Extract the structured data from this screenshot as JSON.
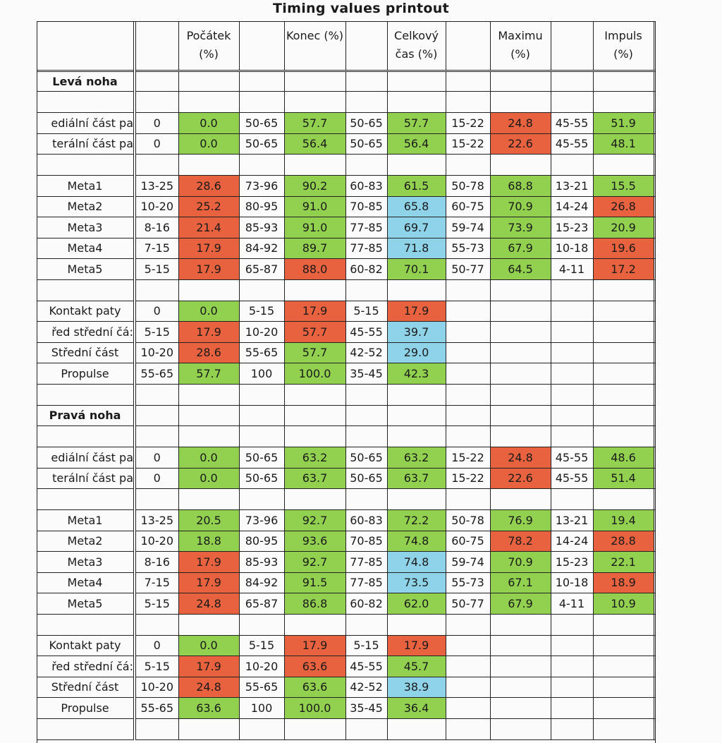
{
  "title": "Timing values printout",
  "colors": {
    "green": "#92d050",
    "red": "#e8623f",
    "blue": "#8fd3e8"
  },
  "headers": [
    "Počátek (%)",
    "Konec (%)",
    "Celkový čas (%)",
    "Maximu (%)",
    "Impuls (%)"
  ],
  "sections": [
    {
      "name": "Levá noha",
      "groups": [
        [
          {
            "label": "ediální část pa",
            "cells": [
              [
                "0",
                "0.0",
                "g"
              ],
              [
                "50-65",
                "57.7",
                "g"
              ],
              [
                "50-65",
                "57.7",
                "g"
              ],
              [
                "15-22",
                "24.8",
                "r"
              ],
              [
                "45-55",
                "51.9",
                "g"
              ]
            ]
          },
          {
            "label": "terální část pa",
            "cells": [
              [
                "0",
                "0.0",
                "g"
              ],
              [
                "50-65",
                "56.4",
                "g"
              ],
              [
                "50-65",
                "56.4",
                "g"
              ],
              [
                "15-22",
                "22.6",
                "r"
              ],
              [
                "45-55",
                "48.1",
                "g"
              ]
            ]
          }
        ],
        [
          {
            "label": "Meta1",
            "cells": [
              [
                "13-25",
                "28.6",
                "r"
              ],
              [
                "73-96",
                "90.2",
                "g"
              ],
              [
                "60-83",
                "61.5",
                "g"
              ],
              [
                "50-78",
                "68.8",
                "g"
              ],
              [
                "13-21",
                "15.5",
                "g"
              ]
            ]
          },
          {
            "label": "Meta2",
            "cells": [
              [
                "10-20",
                "25.2",
                "r"
              ],
              [
                "80-95",
                "91.0",
                "g"
              ],
              [
                "70-85",
                "65.8",
                "b"
              ],
              [
                "60-75",
                "70.9",
                "g"
              ],
              [
                "14-24",
                "26.8",
                "r"
              ]
            ]
          },
          {
            "label": "Meta3",
            "cells": [
              [
                "8-16",
                "21.4",
                "r"
              ],
              [
                "85-93",
                "91.0",
                "g"
              ],
              [
                "77-85",
                "69.7",
                "b"
              ],
              [
                "59-74",
                "73.9",
                "g"
              ],
              [
                "15-23",
                "20.9",
                "g"
              ]
            ]
          },
          {
            "label": "Meta4",
            "cells": [
              [
                "7-15",
                "17.9",
                "r"
              ],
              [
                "84-92",
                "89.7",
                "g"
              ],
              [
                "77-85",
                "71.8",
                "b"
              ],
              [
                "55-73",
                "67.9",
                "g"
              ],
              [
                "10-18",
                "19.6",
                "r"
              ]
            ]
          },
          {
            "label": "Meta5",
            "cells": [
              [
                "5-15",
                "17.9",
                "r"
              ],
              [
                "65-87",
                "88.0",
                "r"
              ],
              [
                "60-82",
                "70.1",
                "g"
              ],
              [
                "50-77",
                "64.5",
                "g"
              ],
              [
                "4-11",
                "17.2",
                "r"
              ]
            ]
          }
        ],
        [
          {
            "label": "Kontakt paty",
            "cells": [
              [
                "0",
                "0.0",
                "g"
              ],
              [
                "5-15",
                "17.9",
                "r"
              ],
              [
                "5-15",
                "17.9",
                "r"
              ],
              [
                "",
                "",
                " "
              ],
              [
                "",
                "",
                " "
              ]
            ]
          },
          {
            "label": "řed střední čá:",
            "cells": [
              [
                "5-15",
                "17.9",
                "r"
              ],
              [
                "10-20",
                "57.7",
                "r"
              ],
              [
                "45-55",
                "39.7",
                "b"
              ],
              [
                "",
                "",
                " "
              ],
              [
                "",
                "",
                " "
              ]
            ]
          },
          {
            "label": "Střední část",
            "cells": [
              [
                "10-20",
                "28.6",
                "r"
              ],
              [
                "55-65",
                "57.7",
                "g"
              ],
              [
                "42-52",
                "29.0",
                "b"
              ],
              [
                "",
                "",
                " "
              ],
              [
                "",
                "",
                " "
              ]
            ]
          },
          {
            "label": "Propulse",
            "cells": [
              [
                "55-65",
                "57.7",
                "g"
              ],
              [
                "100",
                "100.0",
                "g"
              ],
              [
                "35-45",
                "42.3",
                "g"
              ],
              [
                "",
                "",
                " "
              ],
              [
                "",
                "",
                " "
              ]
            ]
          }
        ]
      ]
    },
    {
      "name": "Pravá noha",
      "groups": [
        [
          {
            "label": "ediální část pa",
            "cells": [
              [
                "0",
                "0.0",
                "g"
              ],
              [
                "50-65",
                "63.2",
                "g"
              ],
              [
                "50-65",
                "63.2",
                "g"
              ],
              [
                "15-22",
                "24.8",
                "r"
              ],
              [
                "45-55",
                "48.6",
                "g"
              ]
            ]
          },
          {
            "label": "terální část pa",
            "cells": [
              [
                "0",
                "0.0",
                "g"
              ],
              [
                "50-65",
                "63.7",
                "g"
              ],
              [
                "50-65",
                "63.7",
                "g"
              ],
              [
                "15-22",
                "22.6",
                "r"
              ],
              [
                "45-55",
                "51.4",
                "g"
              ]
            ]
          }
        ],
        [
          {
            "label": "Meta1",
            "cells": [
              [
                "13-25",
                "20.5",
                "g"
              ],
              [
                "73-96",
                "92.7",
                "g"
              ],
              [
                "60-83",
                "72.2",
                "g"
              ],
              [
                "50-78",
                "76.9",
                "g"
              ],
              [
                "13-21",
                "19.4",
                "g"
              ]
            ]
          },
          {
            "label": "Meta2",
            "cells": [
              [
                "10-20",
                "18.8",
                "g"
              ],
              [
                "80-95",
                "93.6",
                "g"
              ],
              [
                "70-85",
                "74.8",
                "g"
              ],
              [
                "60-75",
                "78.2",
                "r"
              ],
              [
                "14-24",
                "28.8",
                "r"
              ]
            ]
          },
          {
            "label": "Meta3",
            "cells": [
              [
                "8-16",
                "17.9",
                "r"
              ],
              [
                "85-93",
                "92.7",
                "g"
              ],
              [
                "77-85",
                "74.8",
                "b"
              ],
              [
                "59-74",
                "70.9",
                "g"
              ],
              [
                "15-23",
                "22.1",
                "g"
              ]
            ]
          },
          {
            "label": "Meta4",
            "cells": [
              [
                "7-15",
                "17.9",
                "r"
              ],
              [
                "84-92",
                "91.5",
                "g"
              ],
              [
                "77-85",
                "73.5",
                "b"
              ],
              [
                "55-73",
                "67.1",
                "g"
              ],
              [
                "10-18",
                "18.9",
                "r"
              ]
            ]
          },
          {
            "label": "Meta5",
            "cells": [
              [
                "5-15",
                "24.8",
                "r"
              ],
              [
                "65-87",
                "86.8",
                "g"
              ],
              [
                "60-82",
                "62.0",
                "g"
              ],
              [
                "50-77",
                "67.9",
                "g"
              ],
              [
                "4-11",
                "10.9",
                "g"
              ]
            ]
          }
        ],
        [
          {
            "label": "Kontakt paty",
            "cells": [
              [
                "0",
                "0.0",
                "g"
              ],
              [
                "5-15",
                "17.9",
                "r"
              ],
              [
                "5-15",
                "17.9",
                "r"
              ],
              [
                "",
                "",
                " "
              ],
              [
                "",
                "",
                " "
              ]
            ]
          },
          {
            "label": "řed střední čá:",
            "cells": [
              [
                "5-15",
                "17.9",
                "r"
              ],
              [
                "10-20",
                "63.6",
                "r"
              ],
              [
                "45-55",
                "45.7",
                "g"
              ],
              [
                "",
                "",
                " "
              ],
              [
                "",
                "",
                " "
              ]
            ]
          },
          {
            "label": "Střední část",
            "cells": [
              [
                "10-20",
                "24.8",
                "r"
              ],
              [
                "55-65",
                "63.6",
                "g"
              ],
              [
                "42-52",
                "38.9",
                "b"
              ],
              [
                "",
                "",
                " "
              ],
              [
                "",
                "",
                " "
              ]
            ]
          },
          {
            "label": "Propulse",
            "cells": [
              [
                "55-65",
                "63.6",
                "g"
              ],
              [
                "100",
                "100.0",
                "g"
              ],
              [
                "35-45",
                "36.4",
                "g"
              ],
              [
                "",
                "",
                " "
              ],
              [
                "",
                "",
                " "
              ]
            ]
          }
        ]
      ]
    }
  ]
}
